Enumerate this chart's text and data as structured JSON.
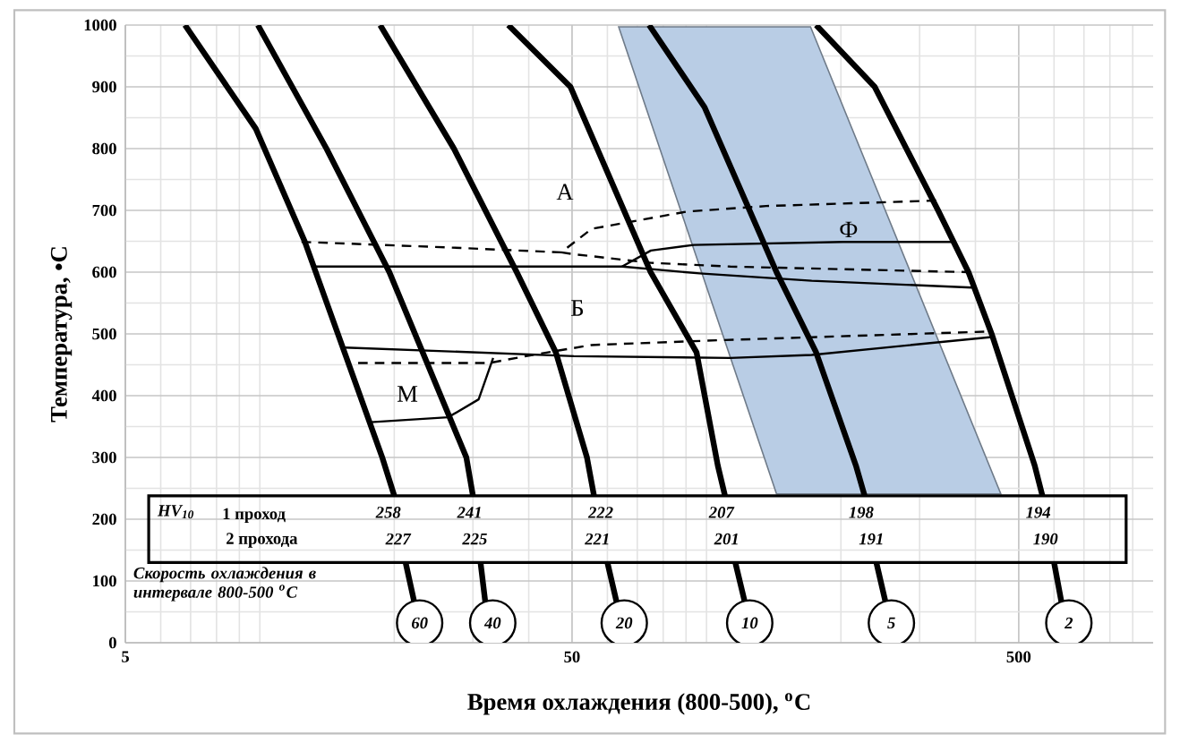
{
  "chart_data": {
    "type": "line",
    "xlabel": "Время охлаждения (800-500), $^{o}$C",
    "ylabel": "Температура, •C",
    "log": "x",
    "xlim": [
      5,
      1000
    ],
    "ylim": [
      0,
      1000
    ],
    "xticks": [
      5,
      50,
      500
    ],
    "yticks": [
      0,
      100,
      200,
      300,
      400,
      500,
      600,
      700,
      800,
      900,
      1000
    ],
    "grid": true,
    "marker": "none",
    "series": [
      {
        "type": "area",
        "color": "#b9cde5",
        "x": [
          63.6,
          171,
          456,
          143.5
        ],
        "values": [
          997,
          997,
          241,
          241
        ]
      },
      {
        "name": "60",
        "color": "#000000",
        "line_style": "solid",
        "x": [
          6.8,
          9.8,
          12.6,
          18.8,
          20,
          20.6,
          21.2,
          22.2,
          23.4
        ],
        "values": [
          1000,
          832,
          650,
          300,
          238,
          null,
          130,
          64,
          0
        ]
      },
      {
        "name": "40",
        "color": "#000000",
        "line_style": "solid",
        "x": [
          9.9,
          14.1,
          19.5,
          29,
          30,
          30.6,
          31.2,
          32,
          34.5
        ],
        "values": [
          1000,
          800,
          600,
          300,
          238,
          null,
          130,
          64,
          0
        ]
      },
      {
        "name": "20",
        "color": "#000000",
        "line_style": "solid",
        "x": [
          18.6,
          27.2,
          37.6,
          46,
          54,
          56,
          58,
          60,
          63,
          68
        ],
        "values": [
          1000,
          800,
          600,
          470,
          300,
          238,
          null,
          130,
          64,
          0
        ]
      },
      {
        "name": "10",
        "color": "#000000",
        "line_style": "solid",
        "x": [
          36,
          49.6,
          75,
          95,
          106,
          110,
          113,
          116,
          122,
          128
        ],
        "values": [
          1000,
          900,
          600,
          470,
          287,
          238,
          null,
          130,
          64,
          0
        ]
      },
      {
        "name": "5",
        "color": "#000000",
        "line_style": "solid",
        "x": [
          74.4,
          99,
          143.5,
          176,
          216,
          226,
          233,
          240,
          252,
          267
        ],
        "values": [
          1000,
          867,
          600,
          470,
          287,
          238,
          null,
          130,
          64,
          0
        ]
      },
      {
        "name": "2",
        "color": "#000000",
        "line_style": "solid",
        "x": [
          176,
          238,
          330,
          386,
          435,
          543,
          565,
          585,
          600,
          624,
          672
        ],
        "values": [
          1000,
          900,
          700,
          600,
          500,
          287,
          238,
          null,
          130,
          64,
          0
        ]
      },
      {
        "color": "#000000",
        "line_style": "dashed",
        "x": [
          12.4,
          26.4,
          47.3,
          55.3,
          90.3,
          136,
          330
        ],
        "values": [
          649,
          640,
          632,
          670,
          698,
          707,
          716
        ]
      },
      {
        "color": "#000000",
        "line_style": "dashed",
        "x": [
          47.3,
          50.5,
          75.1,
          113,
          386
        ],
        "values": [
          632,
          629,
          615,
          609,
          600
        ]
      },
      {
        "color": "#000000",
        "line_style": "solid",
        "x": [
          13.2,
          64.7,
          96.4,
          172,
          393
        ],
        "values": [
          609,
          609,
          598,
          586,
          575
        ]
      },
      {
        "color": "#000000",
        "line_style": "solid",
        "x": [
          64.7,
          75.1,
          93.7,
          202,
          361
        ],
        "values": [
          609,
          635,
          644,
          649,
          649
        ]
      },
      {
        "color": "#000000",
        "line_style": "solid",
        "x": [
          15.5,
          50.5,
          113,
          172,
          435
        ],
        "values": [
          478,
          464,
          461,
          466,
          495
        ]
      },
      {
        "color": "#000000",
        "line_style": "dashed",
        "x": [
          16.6,
          32.7,
          40.8,
          55.3,
          109,
          435
        ],
        "values": [
          453,
          453,
          466,
          482,
          490,
          504
        ]
      },
      {
        "color": "#000000",
        "line_style": "solid",
        "x": [
          17.7,
          26.4,
          30.9,
          33.3
        ],
        "values": [
          357,
          365,
          394,
          461
        ]
      }
    ],
    "legend": "bottom",
    "annotations": [
      "А",
      "Б",
      "М",
      "Ф",
      "HV$_{10}$",
      "1 проход",
      "2 прохода",
      "258",
      "241",
      "222",
      "207",
      "198",
      "194",
      "227",
      "225",
      "221",
      "201",
      "191",
      "190",
      "Скорость охлаждения в интервале 800-500 $^{o}$C"
    ]
  }
}
